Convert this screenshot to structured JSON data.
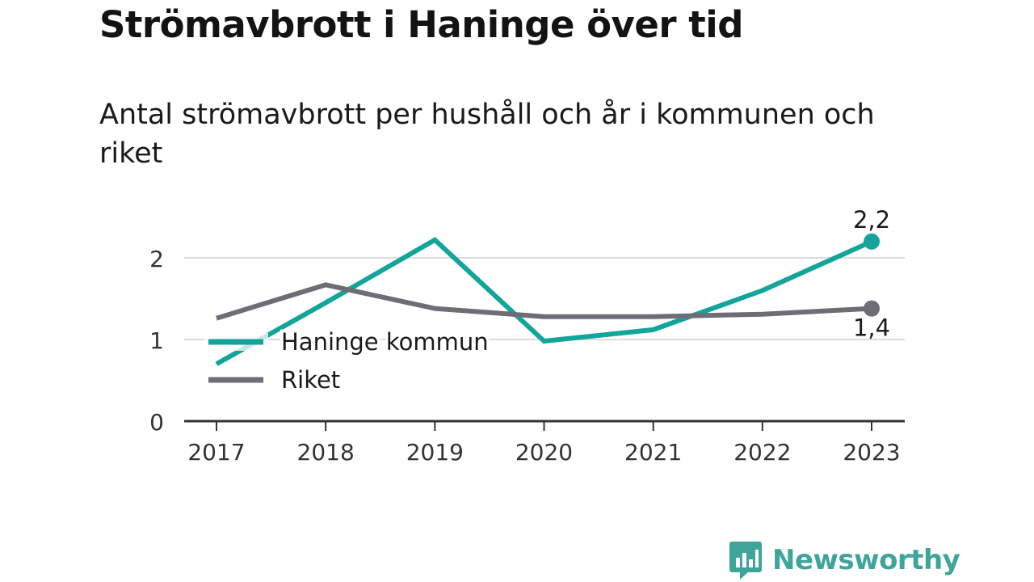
{
  "header": {
    "title": "Strömavbrott i Haninge över tid",
    "subtitle": "Antal strömavbrott per hushåll och år i kommunen och riket"
  },
  "chart_data": {
    "type": "line",
    "x": [
      "2017",
      "2018",
      "2019",
      "2020",
      "2021",
      "2022",
      "2023"
    ],
    "y_ticks": [
      "0",
      "1",
      "2"
    ],
    "ylim": [
      0,
      2.5
    ],
    "grid": true,
    "legend_position": "left",
    "series": [
      {
        "name": "Haninge kommun",
        "color": "#13a49a",
        "values": [
          0.7,
          1.45,
          2.22,
          0.98,
          1.12,
          1.6,
          2.2
        ],
        "end_label": "2,2"
      },
      {
        "name": "Riket",
        "color": "#6e6d75",
        "values": [
          1.26,
          1.67,
          1.38,
          1.28,
          1.28,
          1.31,
          1.38
        ],
        "end_label": "1,4"
      }
    ]
  },
  "brand": {
    "name": "Newsworthy",
    "logo_icon": "bar-chart-speech-bubble-icon",
    "color": "#3fa59a"
  }
}
